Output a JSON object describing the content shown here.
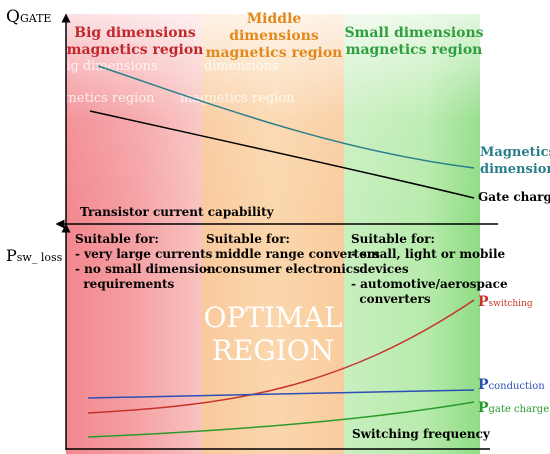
{
  "axes": {
    "top_y_label": "Q",
    "top_y_sub": "GATE",
    "bottom_y_label": "P",
    "bottom_y_sub": "sw_ loss",
    "x_label": "Switching frequency",
    "transistor_label": "Transistor current capability"
  },
  "regions": {
    "big": {
      "title_line1": "Big dimensions",
      "title_line2": "magnetics region",
      "color": "#c0282d",
      "suitable_title": "Suitable for:",
      "items": [
        "- very large currents",
        "- no small dimension",
        "  requirements"
      ]
    },
    "middle": {
      "title_line1": "Middle",
      "title_line2": "dimensions",
      "title_line3": "magnetics region",
      "color": "#e08a1e",
      "suitable_title": "Suitable for:",
      "items": [
        "- middle range converters",
        "- consumer electronics"
      ]
    },
    "small": {
      "title_line1": "Small dimensions",
      "title_line2": "magnetics region",
      "color": "#2e9e3e",
      "suitable_title": "Suitable for:",
      "items": [
        "- small, light or mobile",
        "  devices",
        "- automotive/aerospace",
        "  converters"
      ]
    }
  },
  "faded_text": {
    "line1": "big dimensions",
    "line2": "magnetics region",
    "line3": "dimensions",
    "line4": "magnetics region"
  },
  "optimal": {
    "line1": "OPTIMAL",
    "line2": "REGION"
  },
  "curves": {
    "magnetics": {
      "label_line1": "Magnetics",
      "label_line2": "dimension",
      "color": "#2a7f8a"
    },
    "gate_charge": {
      "label": "Gate charge",
      "color": "#000000"
    },
    "switching": {
      "label_main": "P",
      "label_sub": "switching",
      "color": "#c8322a"
    },
    "conduction": {
      "label_main": "P",
      "label_sub": "conduction",
      "color": "#2d4fb5"
    },
    "gate": {
      "label_main": "P",
      "label_sub": "gate charge",
      "color": "#2a9a2a"
    }
  }
}
